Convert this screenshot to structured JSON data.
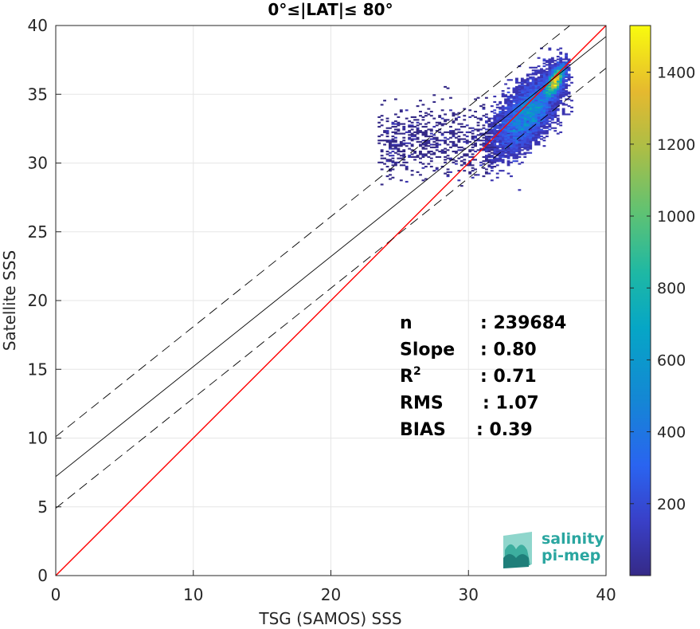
{
  "chart_data": {
    "type": "heatmap",
    "title": "0°≤|LAT|≤ 80°",
    "xlabel": "TSG (SAMOS) SSS",
    "ylabel": "Satellite SSS",
    "xlim": [
      0,
      40
    ],
    "ylim": [
      0,
      40
    ],
    "xticks": [
      "0",
      "10",
      "20",
      "30",
      "40"
    ],
    "yticks": [
      "0",
      "5",
      "10",
      "15",
      "20",
      "25",
      "30",
      "35",
      "40"
    ],
    "grid": true,
    "colorbar": {
      "range": [
        0,
        1530
      ],
      "ticks": [
        "200",
        "400",
        "600",
        "800",
        "1000",
        "1200",
        "1400"
      ],
      "colormap": "parula"
    },
    "lines": [
      {
        "name": "one-to-one",
        "color": "#ff0000",
        "x": [
          0,
          40
        ],
        "y": [
          0,
          40
        ]
      },
      {
        "name": "fit",
        "color": "#000000",
        "x": [
          0,
          40
        ],
        "y": [
          7.2,
          39.2
        ]
      },
      {
        "name": "fit-upper",
        "color": "#000000",
        "dashed": true,
        "x": [
          0,
          40
        ],
        "y": [
          10.1,
          42.1
        ]
      },
      {
        "name": "fit-lower",
        "color": "#000000",
        "dashed": true,
        "x": [
          0,
          40
        ],
        "y": [
          4.9,
          36.9
        ]
      }
    ],
    "density": {
      "center": [
        34.5,
        34.0
      ],
      "peak": [
        36.4,
        36.2
      ],
      "x_range": [
        23.5,
        37.5
      ],
      "y_range": [
        28.0,
        38.5
      ]
    },
    "stats": [
      {
        "label": "n",
        "sup": "",
        "value": ": 239684"
      },
      {
        "label": "Slope",
        "sup": "",
        "value": ": 0.80"
      },
      {
        "label": "R",
        "sup": "2",
        "value": ": 0.71"
      },
      {
        "label": "RMS",
        "sup": "",
        "value": ": 1.07"
      },
      {
        "label": "BIAS",
        "sup": "",
        "value": ": 0.39"
      }
    ]
  },
  "logo": {
    "line1": "salinity",
    "line2": "pi-mep",
    "color": "#2aa6a0"
  }
}
